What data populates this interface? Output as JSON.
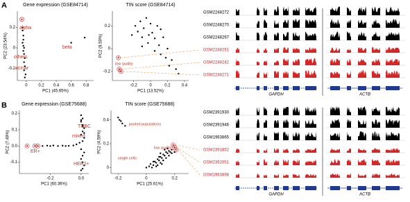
{
  "panel_labels": [
    "A",
    "B"
  ],
  "chart_data": [
    {
      "type": "scatter",
      "title": "Gene expression (GSE84714)",
      "xlabel": "PC1 (45.65%)",
      "ylabel": "PC2 (23.54%)",
      "xlim": [
        -0.12,
        0.9
      ],
      "ylim": [
        -0.32,
        0.36
      ],
      "xticks": [
        0,
        0.2,
        0.4,
        0.6,
        0.8
      ],
      "yticks": [
        -0.2,
        0,
        0.2
      ],
      "annotations": [
        "alpha",
        "beta",
        "others",
        "acinar"
      ],
      "series": [
        {
          "color": "#000000",
          "x": [
            -0.05,
            -0.05,
            -0.04,
            -0.04,
            -0.05,
            -0.04,
            -0.03,
            -0.04,
            -0.03,
            -0.02,
            -0.03,
            -0.02,
            -0.03,
            -0.01,
            -0.02,
            0.6,
            0.78
          ],
          "values": [
            0.2,
            0.17,
            0.12,
            0.08,
            0.05,
            0.02,
            0.0,
            -0.03,
            -0.06,
            -0.1,
            -0.14,
            -0.18,
            -0.22,
            -0.26,
            -0.29,
            0.05,
            0.1
          ]
        },
        {
          "color": "#d62728",
          "x": [
            -0.06
          ],
          "values": [
            0.28
          ]
        }
      ]
    },
    {
      "type": "scatter",
      "title": "TIN score (GSE84714)",
      "xlabel": "PC1 (13.52%)",
      "ylabel": "PC2 (8.59%)",
      "xlim": [
        -0.45,
        0.45
      ],
      "ylim": [
        -0.28,
        0.33
      ],
      "xticks": [
        -0.2,
        0,
        0.2,
        0.4
      ],
      "yticks": [
        -0.2,
        0,
        0.2
      ],
      "annotations": [
        "low quality"
      ],
      "series": [
        {
          "color": "#000000",
          "x": [
            -0.22,
            -0.18,
            -0.15,
            -0.12,
            -0.1,
            -0.08,
            -0.05,
            -0.03,
            0,
            0.02,
            0.05,
            0.08,
            0.1,
            0.12,
            0.15,
            0.2,
            0.25,
            0.3,
            0.33,
            -0.1,
            0.05,
            0.18,
            0.22,
            -0.02,
            0.12
          ],
          "values": [
            0.12,
            0.2,
            0.15,
            0.24,
            0.1,
            0.18,
            0.27,
            0.05,
            0.22,
            0.14,
            0.09,
            0.2,
            0.03,
            -0.05,
            0.1,
            0.0,
            -0.1,
            -0.18,
            -0.22,
            0.02,
            -0.02,
            -0.08,
            -0.15,
            0.12,
            0.17
          ]
        },
        {
          "color": "#d62728",
          "x": [
            -0.38,
            -0.37,
            -0.35
          ],
          "values": [
            -0.08,
            -0.18,
            -0.2
          ]
        }
      ]
    },
    {
      "type": "scatter",
      "title": "Gene expression (GSE75688)",
      "xlabel": "PC1 (60.36%)",
      "ylabel": "PC2 (7.49%)",
      "xlim": [
        -0.4,
        0.05
      ],
      "ylim": [
        -0.17,
        0.22
      ],
      "xticks": [
        -0.2,
        {
          "value": 0,
          "label": "0.0"
        }
      ],
      "yticks": [
        -0.1,
        {
          "value": 0,
          "label": "0.0"
        },
        0.1,
        0.2
      ],
      "annotations": [
        "TNBC",
        "mixed",
        "ER+",
        "HER2+"
      ],
      "series": [
        {
          "color": "#000000",
          "x": [
            -0.25,
            -0.22,
            -0.2,
            -0.18,
            -0.15,
            -0.12,
            -0.1,
            -0.08,
            -0.05,
            -0.03,
            -0.01,
            0.0,
            0.01,
            0.0,
            0.01,
            0.02,
            0.01,
            0.0,
            0.02,
            0.01,
            0.0,
            0.02,
            0.01,
            0.0,
            0.01,
            0.02,
            0.01,
            0.0,
            0.02,
            0.01,
            0.0
          ],
          "values": [
            0,
            0.002,
            0,
            0.003,
            0,
            0.002,
            0,
            0.001,
            0.003,
            0.01,
            0.02,
            0.19,
            0.17,
            0.15,
            0.13,
            0.11,
            0.09,
            0.07,
            0.05,
            0.03,
            -0.02,
            -0.04,
            -0.06,
            -0.08,
            -0.1,
            -0.12,
            -0.14,
            -0.15,
            0.08,
            0.12,
            0.16
          ]
        },
        {
          "color": "#d62728",
          "x": [
            -0.35,
            -0.3,
            -0.28
          ],
          "values": [
            0,
            0,
            0
          ]
        }
      ]
    },
    {
      "type": "scatter",
      "title": "TIN score (GSE75688)",
      "xlabel": "PC1 (25.61%)",
      "ylabel": "PC2 (4.59%)",
      "xlim": [
        -0.25,
        0.3
      ],
      "ylim": [
        -0.05,
        0.48
      ],
      "xticks": [
        -0.2,
        0,
        0.2
      ],
      "yticks": [
        0,
        0.2,
        0.4
      ],
      "annotations": [
        "pooled populations",
        "single cells",
        "low quality"
      ],
      "series": [
        {
          "color": "#000000",
          "x": [
            -0.2,
            -0.19,
            -0.18,
            -0.17,
            -0.15,
            0.0,
            0.02,
            0.03,
            0.05,
            0.06,
            0.07,
            0.08,
            0.09,
            0.1,
            0.11,
            0.12,
            0.13,
            0.14,
            0.15,
            0.16,
            0.17,
            0.18,
            0.05,
            0.08,
            0.1,
            0.12,
            0.14,
            0.16,
            0.04,
            0.07,
            0.1,
            0.13,
            0.15,
            0.18,
            0.2,
            0.09,
            0.11
          ],
          "values": [
            0.42,
            0.4,
            0.39,
            0.37,
            0.35,
            0.0,
            0.01,
            0.03,
            0.02,
            0.05,
            0.04,
            0.07,
            0.06,
            0.09,
            0.08,
            0.11,
            0.1,
            0.13,
            0.12,
            0.14,
            0.13,
            0.15,
            0.05,
            0.02,
            0.04,
            0.06,
            0.08,
            0.1,
            0.0,
            0.01,
            0.12,
            0.15,
            0.16,
            0.12,
            0.13,
            0.09,
            0.03
          ]
        },
        {
          "color": "#d62728",
          "x": [
            0.19,
            0.2,
            0.21
          ],
          "values": [
            0.19,
            0.17,
            0.15
          ]
        }
      ]
    }
  ],
  "tracks": [
    {
      "samples": [
        {
          "name": "GSM2248272",
          "color": "#000000"
        },
        {
          "name": "GSM2248270",
          "color": "#000000"
        },
        {
          "name": "GSM2248267",
          "color": "#000000"
        },
        {
          "name": "GSM2248261",
          "color": "#d62728"
        },
        {
          "name": "GSM2248242",
          "color": "#d62728"
        },
        {
          "name": "GSM2248271",
          "color": "#d62728"
        }
      ],
      "genes": [
        "GAPDH",
        "ACTB"
      ]
    },
    {
      "samples": [
        {
          "name": "GSM2391930",
          "color": "#000000"
        },
        {
          "name": "GSM2391946",
          "color": "#000000"
        },
        {
          "name": "GSM1963865",
          "color": "#000000"
        },
        {
          "name": "GSM2391852",
          "color": "#d62728"
        },
        {
          "name": "GSM2392051",
          "color": "#d62728"
        },
        {
          "name": "GSM1963898",
          "color": "#d62728"
        }
      ],
      "genes": [
        "GAPDH",
        "ACTB"
      ]
    }
  ]
}
